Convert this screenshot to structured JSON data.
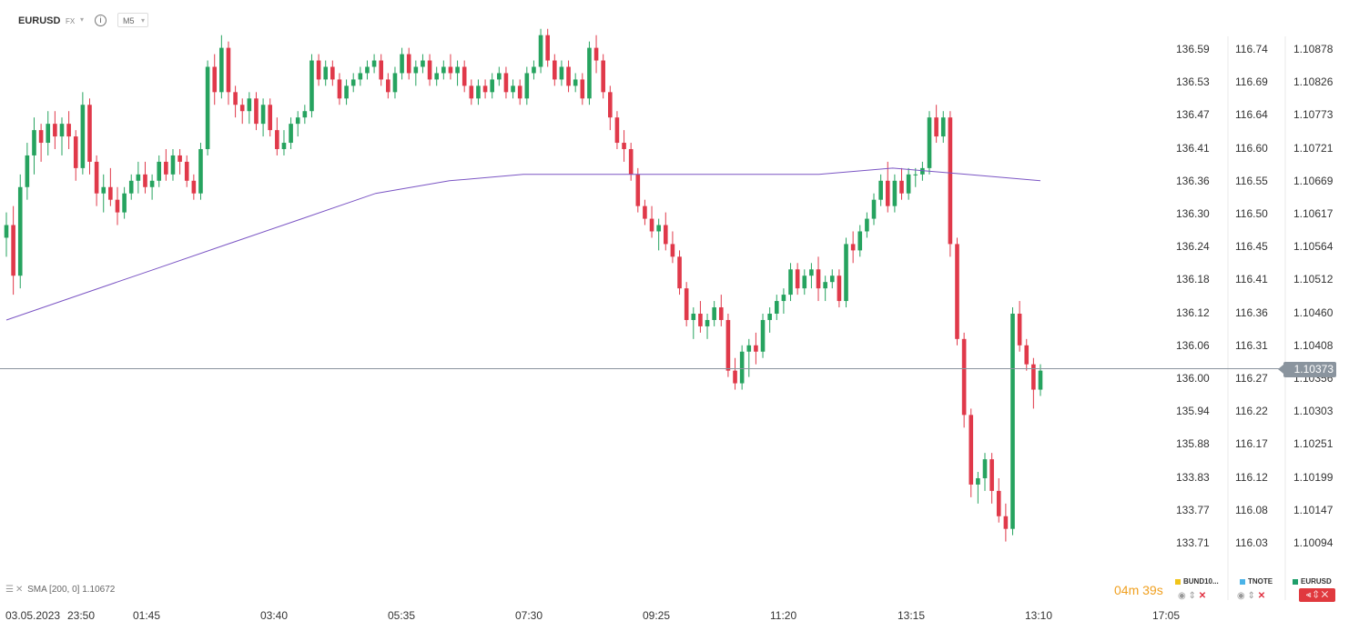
{
  "header": {
    "symbol": "EURUSD",
    "market": "FX",
    "info_glyph": "i",
    "timeframe": "M5"
  },
  "indicator": {
    "label": "SMA",
    "params": "[200,  0]",
    "value": "1.10672"
  },
  "countdown": {
    "minutes": "04",
    "seconds": "39"
  },
  "current_price": "1.10373",
  "legend": [
    {
      "name": "BUND10...",
      "color": "#f0c419"
    },
    {
      "name": "TNOTE",
      "color": "#4ab3e8"
    },
    {
      "name": "EURUSD",
      "color": "#1e9e6a"
    }
  ],
  "colors": {
    "up": "#26a35f",
    "down": "#e0394a",
    "sma": "#7b55c4",
    "grid": "#e8e8e8"
  },
  "chart_data": {
    "type": "candlestick",
    "symbol": "EURUSD",
    "timeframe": "M5",
    "x_tick_labels": [
      "03.05.2023",
      "23:50",
      "01:45",
      "03:40",
      "05:35",
      "07:30",
      "09:25",
      "11:20",
      "13:15",
      "13:10",
      "17:05"
    ],
    "price_scales": [
      {
        "labels": [
          "136.59",
          "136.53",
          "136.47",
          "136.41",
          "136.36",
          "136.30",
          "136.24",
          "136.18",
          "136.12",
          "136.06",
          "136.00",
          "135.94",
          "135.88",
          "133.83",
          "133.77",
          "133.71"
        ]
      },
      {
        "labels": [
          "116.74",
          "116.69",
          "116.64",
          "116.60",
          "116.55",
          "116.50",
          "116.45",
          "116.41",
          "116.36",
          "116.31",
          "116.27",
          "116.22",
          "116.17",
          "116.12",
          "116.08",
          "116.03"
        ]
      },
      {
        "labels": [
          "1.10878",
          "1.10826",
          "1.10773",
          "1.10721",
          "1.10669",
          "1.10617",
          "1.10564",
          "1.10512",
          "1.10460",
          "1.10408",
          "1.10356",
          "1.10303",
          "1.10251",
          "1.10199",
          "1.10147",
          "1.10094"
        ]
      }
    ],
    "main_scale_ticks": [
      1.10878,
      1.10826,
      1.10773,
      1.10721,
      1.10669,
      1.10617,
      1.10564,
      1.10512,
      1.1046,
      1.10408,
      1.10356,
      1.10303,
      1.10251,
      1.10199,
      1.10147,
      1.10094
    ],
    "ohlc": [
      [
        1.1058,
        1.1062,
        1.1055,
        1.106
      ],
      [
        1.106,
        1.1063,
        1.1049,
        1.1052
      ],
      [
        1.1052,
        1.1068,
        1.105,
        1.1066
      ],
      [
        1.1066,
        1.1073,
        1.1064,
        1.1071
      ],
      [
        1.1071,
        1.1077,
        1.1068,
        1.1075
      ],
      [
        1.1075,
        1.1076,
        1.107,
        1.1073
      ],
      [
        1.1073,
        1.1078,
        1.1071,
        1.1076
      ],
      [
        1.1076,
        1.1078,
        1.1072,
        1.1074
      ],
      [
        1.1074,
        1.1077,
        1.1071,
        1.1076
      ],
      [
        1.1076,
        1.1078,
        1.1072,
        1.1074
      ],
      [
        1.1074,
        1.1075,
        1.1067,
        1.1069
      ],
      [
        1.1069,
        1.1081,
        1.1068,
        1.1079
      ],
      [
        1.1079,
        1.108,
        1.1068,
        1.107
      ],
      [
        1.107,
        1.1071,
        1.1063,
        1.1065
      ],
      [
        1.1065,
        1.1068,
        1.1062,
        1.1066
      ],
      [
        1.1066,
        1.1069,
        1.1063,
        1.1064
      ],
      [
        1.1064,
        1.1066,
        1.106,
        1.1062
      ],
      [
        1.1062,
        1.1066,
        1.1061,
        1.1065
      ],
      [
        1.1065,
        1.1068,
        1.1064,
        1.1067
      ],
      [
        1.1067,
        1.107,
        1.1065,
        1.1068
      ],
      [
        1.1068,
        1.107,
        1.1065,
        1.1066
      ],
      [
        1.1066,
        1.1068,
        1.1064,
        1.1067
      ],
      [
        1.1067,
        1.1071,
        1.1066,
        1.107
      ],
      [
        1.107,
        1.1072,
        1.1067,
        1.1068
      ],
      [
        1.1068,
        1.1072,
        1.1067,
        1.1071
      ],
      [
        1.1071,
        1.1072,
        1.1068,
        1.107
      ],
      [
        1.107,
        1.1071,
        1.1066,
        1.1067
      ],
      [
        1.1067,
        1.1068,
        1.1064,
        1.1065
      ],
      [
        1.1065,
        1.1073,
        1.1064,
        1.1072
      ],
      [
        1.1072,
        1.1086,
        1.1071,
        1.1085
      ],
      [
        1.1085,
        1.1087,
        1.1079,
        1.1081
      ],
      [
        1.1081,
        1.109,
        1.108,
        1.1088
      ],
      [
        1.1088,
        1.1089,
        1.1079,
        1.1081
      ],
      [
        1.1081,
        1.1082,
        1.1077,
        1.1079
      ],
      [
        1.1079,
        1.108,
        1.1076,
        1.1078
      ],
      [
        1.1078,
        1.1081,
        1.1076,
        1.108
      ],
      [
        1.108,
        1.1081,
        1.1075,
        1.1076
      ],
      [
        1.1076,
        1.108,
        1.1074,
        1.1079
      ],
      [
        1.1079,
        1.108,
        1.1074,
        1.1075
      ],
      [
        1.1075,
        1.1077,
        1.1071,
        1.1072
      ],
      [
        1.1072,
        1.1075,
        1.1071,
        1.1073
      ],
      [
        1.1073,
        1.1077,
        1.1072,
        1.1076
      ],
      [
        1.1076,
        1.1078,
        1.1074,
        1.1077
      ],
      [
        1.1077,
        1.1079,
        1.1076,
        1.1078
      ],
      [
        1.1078,
        1.1087,
        1.1077,
        1.1086
      ],
      [
        1.1086,
        1.1087,
        1.1082,
        1.1083
      ],
      [
        1.1083,
        1.1086,
        1.1082,
        1.1085
      ],
      [
        1.1085,
        1.1086,
        1.1082,
        1.1083
      ],
      [
        1.1083,
        1.1084,
        1.1079,
        1.108
      ],
      [
        1.108,
        1.1083,
        1.1079,
        1.1082
      ],
      [
        1.1082,
        1.1084,
        1.1081,
        1.1083
      ],
      [
        1.1083,
        1.1085,
        1.1082,
        1.1084
      ],
      [
        1.1084,
        1.1086,
        1.1083,
        1.1085
      ],
      [
        1.1085,
        1.1087,
        1.1084,
        1.1086
      ],
      [
        1.1086,
        1.1087,
        1.1082,
        1.1083
      ],
      [
        1.1083,
        1.1084,
        1.108,
        1.1081
      ],
      [
        1.1081,
        1.1085,
        1.108,
        1.1084
      ],
      [
        1.1084,
        1.1088,
        1.1083,
        1.1087
      ],
      [
        1.1087,
        1.1088,
        1.1083,
        1.1084
      ],
      [
        1.1084,
        1.1086,
        1.1082,
        1.1085
      ],
      [
        1.1085,
        1.1087,
        1.1084,
        1.1086
      ],
      [
        1.1086,
        1.1087,
        1.1082,
        1.1083
      ],
      [
        1.1083,
        1.1085,
        1.1082,
        1.1084
      ],
      [
        1.1084,
        1.1086,
        1.1083,
        1.1085
      ],
      [
        1.1085,
        1.1087,
        1.1083,
        1.1084
      ],
      [
        1.1084,
        1.1086,
        1.1082,
        1.1085
      ],
      [
        1.1085,
        1.1086,
        1.1081,
        1.1082
      ],
      [
        1.1082,
        1.1083,
        1.1079,
        1.108
      ],
      [
        1.108,
        1.1083,
        1.1079,
        1.1082
      ],
      [
        1.1082,
        1.1083,
        1.108,
        1.1081
      ],
      [
        1.1081,
        1.1084,
        1.108,
        1.1083
      ],
      [
        1.1083,
        1.1085,
        1.1082,
        1.1084
      ],
      [
        1.1084,
        1.1085,
        1.108,
        1.1081
      ],
      [
        1.1081,
        1.1083,
        1.108,
        1.1082
      ],
      [
        1.1082,
        1.1083,
        1.1079,
        1.108
      ],
      [
        1.108,
        1.1085,
        1.1079,
        1.1084
      ],
      [
        1.1084,
        1.1086,
        1.1083,
        1.1085
      ],
      [
        1.1085,
        1.1091,
        1.1084,
        1.109
      ],
      [
        1.109,
        1.1091,
        1.1085,
        1.1086
      ],
      [
        1.1086,
        1.1087,
        1.1082,
        1.1083
      ],
      [
        1.1083,
        1.1086,
        1.1082,
        1.1085
      ],
      [
        1.1085,
        1.1086,
        1.1081,
        1.1082
      ],
      [
        1.1082,
        1.1084,
        1.1081,
        1.1083
      ],
      [
        1.1083,
        1.1084,
        1.1079,
        1.108
      ],
      [
        1.108,
        1.1089,
        1.1079,
        1.1088
      ],
      [
        1.1088,
        1.109,
        1.1084,
        1.1086
      ],
      [
        1.1086,
        1.1087,
        1.108,
        1.1081
      ],
      [
        1.1081,
        1.1082,
        1.1075,
        1.1077
      ],
      [
        1.1077,
        1.1078,
        1.1072,
        1.1073
      ],
      [
        1.1073,
        1.1075,
        1.107,
        1.1072
      ],
      [
        1.1072,
        1.1073,
        1.1067,
        1.1068
      ],
      [
        1.1068,
        1.1069,
        1.1062,
        1.1063
      ],
      [
        1.1063,
        1.1064,
        1.106,
        1.1061
      ],
      [
        1.1061,
        1.1063,
        1.1058,
        1.1059
      ],
      [
        1.1059,
        1.1061,
        1.1056,
        1.106
      ],
      [
        1.106,
        1.1062,
        1.1056,
        1.1057
      ],
      [
        1.1057,
        1.1059,
        1.1054,
        1.1055
      ],
      [
        1.1055,
        1.1056,
        1.1049,
        1.105
      ],
      [
        1.105,
        1.1051,
        1.1044,
        1.1045
      ],
      [
        1.1045,
        1.1047,
        1.1042,
        1.1046
      ],
      [
        1.1046,
        1.1048,
        1.1043,
        1.1044
      ],
      [
        1.1044,
        1.1046,
        1.1042,
        1.1045
      ],
      [
        1.1045,
        1.1048,
        1.1044,
        1.1047
      ],
      [
        1.1047,
        1.1049,
        1.1044,
        1.1045
      ],
      [
        1.1045,
        1.1046,
        1.1036,
        1.1037
      ],
      [
        1.1037,
        1.1039,
        1.1034,
        1.1035
      ],
      [
        1.1035,
        1.1041,
        1.1034,
        1.104
      ],
      [
        1.104,
        1.1042,
        1.1036,
        1.1041
      ],
      [
        1.1041,
        1.1043,
        1.1038,
        1.104
      ],
      [
        1.104,
        1.1046,
        1.1039,
        1.1045
      ],
      [
        1.1045,
        1.1047,
        1.1043,
        1.1046
      ],
      [
        1.1046,
        1.1049,
        1.1045,
        1.1048
      ],
      [
        1.1048,
        1.105,
        1.1046,
        1.1049
      ],
      [
        1.1049,
        1.1054,
        1.1048,
        1.1053
      ],
      [
        1.1053,
        1.1054,
        1.1049,
        1.105
      ],
      [
        1.105,
        1.1053,
        1.1049,
        1.1052
      ],
      [
        1.1052,
        1.1054,
        1.105,
        1.1053
      ],
      [
        1.1053,
        1.1055,
        1.1048,
        1.105
      ],
      [
        1.105,
        1.1052,
        1.1048,
        1.1051
      ],
      [
        1.1051,
        1.1053,
        1.105,
        1.1052
      ],
      [
        1.1052,
        1.1053,
        1.1047,
        1.1048
      ],
      [
        1.1048,
        1.1058,
        1.1047,
        1.1057
      ],
      [
        1.1057,
        1.1059,
        1.1054,
        1.1056
      ],
      [
        1.1056,
        1.106,
        1.1055,
        1.1059
      ],
      [
        1.1059,
        1.1062,
        1.1058,
        1.1061
      ],
      [
        1.1061,
        1.1065,
        1.106,
        1.1064
      ],
      [
        1.1064,
        1.1068,
        1.1063,
        1.1067
      ],
      [
        1.1067,
        1.107,
        1.1062,
        1.1063
      ],
      [
        1.1063,
        1.1068,
        1.1062,
        1.1067
      ],
      [
        1.1067,
        1.1069,
        1.1064,
        1.1065
      ],
      [
        1.1065,
        1.1069,
        1.1064,
        1.1068
      ],
      [
        1.1068,
        1.1069,
        1.1066,
        1.1068
      ],
      [
        1.1068,
        1.107,
        1.1067,
        1.1069
      ],
      [
        1.1069,
        1.1078,
        1.1068,
        1.1077
      ],
      [
        1.1077,
        1.1079,
        1.1073,
        1.1074
      ],
      [
        1.1074,
        1.1078,
        1.1073,
        1.1077
      ],
      [
        1.1077,
        1.1078,
        1.1055,
        1.1057
      ],
      [
        1.1057,
        1.1058,
        1.1041,
        1.1042
      ],
      [
        1.1042,
        1.1043,
        1.1028,
        1.103
      ],
      [
        1.103,
        1.1031,
        1.1017,
        1.1019
      ],
      [
        1.1019,
        1.1021,
        1.1016,
        1.102
      ],
      [
        1.102,
        1.1024,
        1.1018,
        1.1023
      ],
      [
        1.1023,
        1.1024,
        1.1016,
        1.1018
      ],
      [
        1.1018,
        1.102,
        1.1013,
        1.1014
      ],
      [
        1.1014,
        1.1016,
        1.101,
        1.1012
      ],
      [
        1.1012,
        1.1047,
        1.1011,
        1.1046
      ],
      [
        1.1046,
        1.1048,
        1.104,
        1.1041
      ],
      [
        1.1041,
        1.1042,
        1.1037,
        1.1038
      ],
      [
        1.1038,
        1.1039,
        1.1031,
        1.1034
      ],
      [
        1.1034,
        1.1038,
        1.1033,
        1.1037
      ]
    ],
    "sma": {
      "name": "SMA [200, 0]",
      "value": 1.10672,
      "points": [
        1.1045,
        1.1049,
        1.1053,
        1.1057,
        1.1061,
        1.1065,
        1.1067,
        1.1068,
        1.1068,
        1.1068,
        1.1068,
        1.1068,
        1.1069,
        1.1068,
        1.1067
      ]
    },
    "last_price": 1.10373,
    "grid": true
  }
}
